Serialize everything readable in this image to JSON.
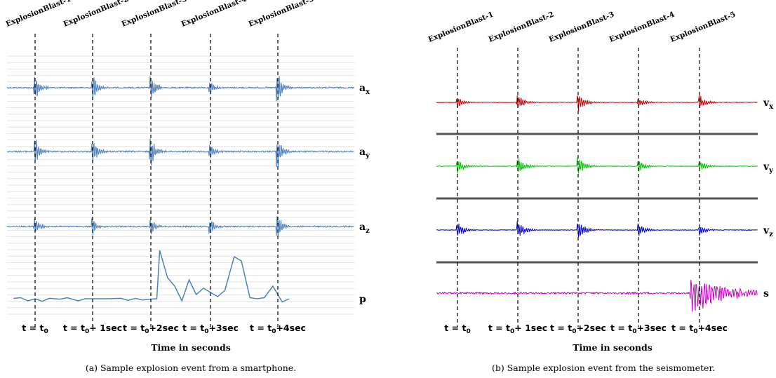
{
  "chart_data": [
    {
      "type": "line",
      "caption": "(a) Sample explosion event from a smartphone.",
      "xlabel": "Time in seconds",
      "events": [
        "ExplosionBlast-1",
        "ExplosionBlast-2",
        "ExplosionBlast-3",
        "ExplosionBlast-4",
        "ExplosionBlast-5"
      ],
      "x_ticks": [
        {
          "main": "t = t",
          "sub": "0",
          "rest": ""
        },
        {
          "main": "t = t",
          "sub": "0",
          "rest": "+ 1sec"
        },
        {
          "main": "t = t",
          "sub": "0",
          "rest": "+2sec"
        },
        {
          "main": "t = t",
          "sub": "0",
          "rest": "+3sec"
        },
        {
          "main": "t = t",
          "sub": "0",
          "rest": "+4sec"
        }
      ],
      "event_times_sec": [
        0,
        1,
        2,
        3,
        4
      ],
      "grid": true,
      "series": [
        {
          "name": "a",
          "sub": "x",
          "color": "#4f81bd",
          "burst_strength": [
            0.9,
            1.0,
            0.85,
            0.4,
            1.0
          ]
        },
        {
          "name": "a",
          "sub": "y",
          "color": "#4f81bd",
          "burst_strength": [
            0.9,
            1.0,
            0.9,
            0.45,
            1.0
          ]
        },
        {
          "name": "a",
          "sub": "z",
          "color": "#4f81bd",
          "burst_strength": [
            0.55,
            0.5,
            0.5,
            0.5,
            0.7
          ]
        },
        {
          "name": "p",
          "sub": "",
          "color": "#4f81bd",
          "pressure_profile": [
            [
              -0.45,
              0.0
            ],
            [
              -0.3,
              0.02
            ],
            [
              -0.2,
              0.05
            ],
            [
              -0.1,
              -0.1
            ],
            [
              0.0,
              0.0
            ],
            [
              0.1,
              -0.12
            ],
            [
              0.2,
              0.02
            ],
            [
              0.35,
              -0.02
            ],
            [
              0.45,
              0.05
            ],
            [
              0.6,
              -0.1
            ],
            [
              0.7,
              0.0
            ],
            [
              0.85,
              0.0
            ],
            [
              1.0,
              0.0
            ],
            [
              1.2,
              0.02
            ],
            [
              1.3,
              -0.08
            ],
            [
              1.4,
              0.02
            ],
            [
              1.5,
              -0.06
            ],
            [
              1.6,
              -0.02
            ],
            [
              1.7,
              0.0
            ],
            [
              1.74,
              2.3
            ],
            [
              1.85,
              1.0
            ],
            [
              1.95,
              0.6
            ],
            [
              2.05,
              -0.1
            ],
            [
              2.15,
              0.9
            ],
            [
              2.25,
              0.2
            ],
            [
              2.35,
              0.5
            ],
            [
              2.45,
              0.3
            ],
            [
              2.55,
              0.1
            ],
            [
              2.65,
              0.4
            ],
            [
              2.78,
              2.0
            ],
            [
              2.88,
              1.8
            ],
            [
              3.0,
              0.05
            ],
            [
              3.1,
              0.0
            ],
            [
              3.2,
              0.05
            ],
            [
              3.32,
              0.6
            ],
            [
              3.45,
              -0.15
            ],
            [
              3.55,
              0.0
            ]
          ]
        }
      ]
    },
    {
      "type": "line",
      "caption": "(b) Sample explosion event from the seismometer.",
      "xlabel": "Time in seconds",
      "events": [
        "ExplosionBlast-1",
        "ExplosionBlast-2",
        "ExplosionBlast-3",
        "ExplosionBlast-4",
        "ExplosionBlast-5"
      ],
      "x_ticks": [
        {
          "main": "t = t",
          "sub": "0",
          "rest": ""
        },
        {
          "main": "t = t",
          "sub": "0",
          "rest": "+ 1sec"
        },
        {
          "main": "t = t",
          "sub": "0",
          "rest": "+2sec"
        },
        {
          "main": "t = t",
          "sub": "0",
          "rest": "+3sec"
        },
        {
          "main": "t = t",
          "sub": "0",
          "rest": "+4sec"
        }
      ],
      "event_times_sec": [
        0,
        1,
        2,
        3,
        4
      ],
      "grid": false,
      "series": [
        {
          "name": "v",
          "sub": "x",
          "color": "#c00000",
          "burst_strength": [
            0.6,
            0.7,
            0.9,
            0.5,
            0.7
          ]
        },
        {
          "name": "v",
          "sub": "y",
          "color": "#00c000",
          "burst_strength": [
            0.7,
            0.8,
            0.9,
            0.6,
            0.6
          ]
        },
        {
          "name": "v",
          "sub": "z",
          "color": "#0000c0",
          "burst_strength": [
            0.8,
            0.9,
            1.0,
            0.7,
            0.5
          ]
        },
        {
          "name": "s",
          "sub": "",
          "color": "#c000c0",
          "noise": 0.25,
          "final_burst": 1.0
        }
      ]
    }
  ]
}
